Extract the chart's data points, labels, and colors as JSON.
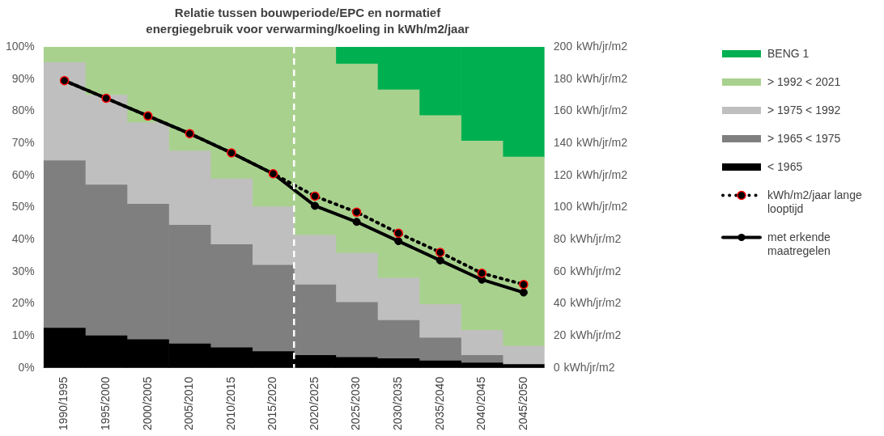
{
  "chart_data": {
    "type": "bar",
    "stacked": true,
    "title": "Relatie tussen bouwperiode/EPC en normatief energiegebruik voor verwarming/koeling in kWh/m2/jaar",
    "categories": [
      "1990/1995",
      "1995/2000",
      "2000/2005",
      "2005/2010",
      "2010/2015",
      "2015/2020",
      "2020/2025",
      "2025/2030",
      "2030/2035",
      "2035/2040",
      "2040/2045",
      "2045/2050"
    ],
    "series": [
      {
        "name": "< 1965",
        "color": "#000000",
        "values": [
          12.4,
          10,
          8.8,
          7.5,
          6.3,
          5.1,
          3.9,
          3.3,
          2.9,
          2.2,
          1.6,
          1.1
        ]
      },
      {
        "name": "> 1965 < 1975",
        "color": "#7f7f7f",
        "values": [
          52.2,
          47,
          42.2,
          37,
          32.1,
          26.9,
          22,
          17.1,
          11.9,
          7.1,
          2.3,
          0
        ]
      },
      {
        "name": "> 1975 < 1992",
        "color": "#bfbfbf",
        "values": [
          30.5,
          28,
          25.4,
          23.1,
          20.5,
          18.2,
          15.4,
          15.4,
          13.2,
          10.5,
          7.8,
          5.7
        ]
      },
      {
        "name": "> 1992 < 2021",
        "color": "#a9d18e",
        "values": [
          4.9,
          15,
          23.6,
          32.4,
          41.1,
          49.8,
          58.7,
          58.9,
          58.6,
          58.8,
          59,
          58.9
        ]
      },
      {
        "name": "BENG 1",
        "color": "#00b050",
        "values": [
          0,
          0,
          0,
          0,
          0,
          0,
          0,
          5.3,
          13.4,
          21.4,
          29.3,
          34.3
        ]
      },
      {
        "name": "met erkende maatregelen",
        "type": "line",
        "axis": "y2",
        "color": "#000000",
        "marker": "circle",
        "line_style": "solid",
        "values": [
          179,
          168,
          157,
          146,
          134,
          121,
          101,
          91,
          79,
          67,
          55,
          47
        ]
      },
      {
        "name": "kWh/m2/jaar lange looptijd",
        "type": "line",
        "axis": "y2",
        "color": "#000000",
        "marker": "circle",
        "line_style": "dotted",
        "values": [
          179,
          168,
          157,
          146,
          134,
          121,
          107,
          97,
          84,
          72,
          59,
          52
        ]
      }
    ],
    "ylim": [
      0,
      100
    ],
    "yticks": [
      {
        "value": 0,
        "label": "0%"
      },
      {
        "value": 10,
        "label": "10%"
      },
      {
        "value": 20,
        "label": "20%"
      },
      {
        "value": 30,
        "label": "30%"
      },
      {
        "value": 40,
        "label": "40%"
      },
      {
        "value": 50,
        "label": "50%"
      },
      {
        "value": 60,
        "label": "60%"
      },
      {
        "value": 70,
        "label": "70%"
      },
      {
        "value": 80,
        "label": "80%"
      },
      {
        "value": 90,
        "label": "90%"
      },
      {
        "value": 100,
        "label": "100%"
      }
    ],
    "y2lim": [
      0,
      200
    ],
    "y2ticks": [
      0,
      20,
      40,
      60,
      80,
      100,
      120,
      140,
      160,
      180,
      200
    ],
    "y2label": "kWh/jr/m2",
    "grid": false,
    "legend": "right"
  }
}
